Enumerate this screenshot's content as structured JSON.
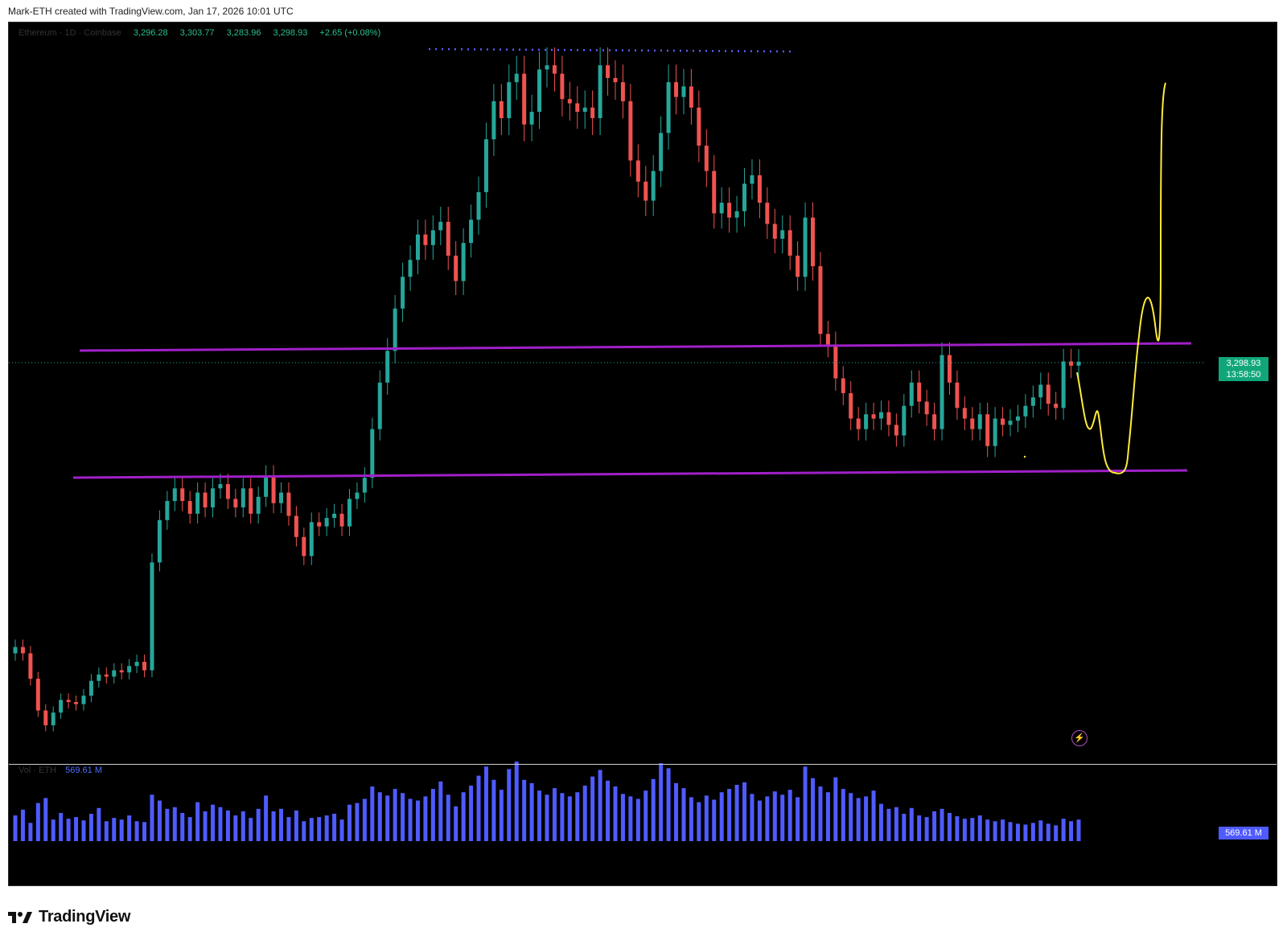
{
  "header": {
    "credit": "Mark-ETH created with TradingView.com, Jan 17, 2026 10:01 UTC"
  },
  "legend": {
    "symbol": "Ethereum · 1D · Coinbase",
    "open": "3,296.28",
    "high": "3,303.77",
    "low": "3,283.96",
    "close": "3,298.93",
    "change": "+2.65 (+0.08%)"
  },
  "price_tag": {
    "price": "3,298.93",
    "countdown": "13:58:50"
  },
  "volume": {
    "name": "Vol · ETH",
    "value": "569.61 M",
    "tag": "569.61 M"
  },
  "brand": {
    "name": "TradingView"
  },
  "colors": {
    "background": "#000000",
    "up": "#26a69a",
    "down": "#ef5350",
    "level_line": "#a020c8",
    "projection": "#ffeb3b",
    "volume": "#4f5bff",
    "dotted_top": "#5b5bff",
    "price_tag": "#11a67a"
  },
  "icons": {
    "lightning": "lightning-icon",
    "logo": "tradingview-logo-icon"
  },
  "chart_data": {
    "type": "candlestick",
    "title": "",
    "y_unit": "USD",
    "close_series": [
      1950,
      1920,
      1800,
      1650,
      1580,
      1640,
      1700,
      1690,
      1680,
      1720,
      1790,
      1820,
      1810,
      1840,
      1830,
      1860,
      1880,
      1840,
      2350,
      2550,
      2640,
      2700,
      2640,
      2580,
      2680,
      2610,
      2700,
      2720,
      2650,
      2610,
      2700,
      2580,
      2660,
      2760,
      2630,
      2680,
      2570,
      2470,
      2380,
      2540,
      2520,
      2560,
      2580,
      2520,
      2650,
      2680,
      2750,
      2980,
      3200,
      3350,
      3550,
      3700,
      3780,
      3900,
      3850,
      3920,
      3960,
      3800,
      3680,
      3860,
      3970,
      4100,
      4350,
      4530,
      4450,
      4620,
      4660,
      4420,
      4480,
      4680,
      4700,
      4660,
      4540,
      4520,
      4480,
      4500,
      4450,
      4700,
      4640,
      4620,
      4530,
      4250,
      4150,
      4060,
      4200,
      4380,
      4620,
      4550,
      4600,
      4500,
      4320,
      4200,
      4000,
      4050,
      3980,
      4010,
      4140,
      4180,
      4050,
      3950,
      3880,
      3920,
      3800,
      3700,
      3980,
      3750,
      3430,
      3380,
      3220,
      3150,
      3030,
      2980,
      3050,
      3030,
      3060,
      3000,
      2950,
      3090,
      3200,
      3110,
      3050,
      2980,
      3330,
      3200,
      3080,
      3030,
      2980,
      3050,
      2900,
      3030,
      3000,
      3020,
      3040,
      3090,
      3130,
      3190,
      3100,
      3080,
      3300,
      3280,
      3298.93
    ],
    "volume_series": [
      3.1,
      3.8,
      2.2,
      4.6,
      5.2,
      2.6,
      3.4,
      2.7,
      2.9,
      2.5,
      3.3,
      4.0,
      2.4,
      2.8,
      2.6,
      3.1,
      2.4,
      2.3,
      5.6,
      4.9,
      3.9,
      4.1,
      3.4,
      2.9,
      4.7,
      3.6,
      4.4,
      4.1,
      3.7,
      3.1,
      3.6,
      2.8,
      3.9,
      5.5,
      3.6,
      3.9,
      2.9,
      3.7,
      2.4,
      2.8,
      2.9,
      3.1,
      3.3,
      2.6,
      4.4,
      4.6,
      5.1,
      6.6,
      5.9,
      5.5,
      6.3,
      5.8,
      5.1,
      4.9,
      5.4,
      6.3,
      7.2,
      5.6,
      4.2,
      5.9,
      6.7,
      7.9,
      9.0,
      7.4,
      6.2,
      8.7,
      9.6,
      7.4,
      7.0,
      6.1,
      5.6,
      6.4,
      5.8,
      5.4,
      5.9,
      6.7,
      7.8,
      8.6,
      7.3,
      6.6,
      5.7,
      5.4,
      5.1,
      6.1,
      7.5,
      9.4,
      8.8,
      7.0,
      6.4,
      5.3,
      4.7,
      5.5,
      5.0,
      5.9,
      6.3,
      6.8,
      7.1,
      5.7,
      4.9,
      5.4,
      6.0,
      5.6,
      6.2,
      5.3,
      9.0,
      7.6,
      6.6,
      5.9,
      7.7,
      6.3,
      5.8,
      5.2,
      5.4,
      6.1,
      4.5,
      3.9,
      4.1,
      3.3,
      4.0,
      3.1,
      2.9,
      3.6,
      3.9,
      3.4,
      3.0,
      2.7,
      2.8,
      3.1,
      2.6,
      2.4,
      2.6,
      2.3,
      2.1,
      2.0,
      2.2,
      2.5,
      2.1,
      1.9,
      2.7,
      2.4,
      2.6
    ]
  }
}
